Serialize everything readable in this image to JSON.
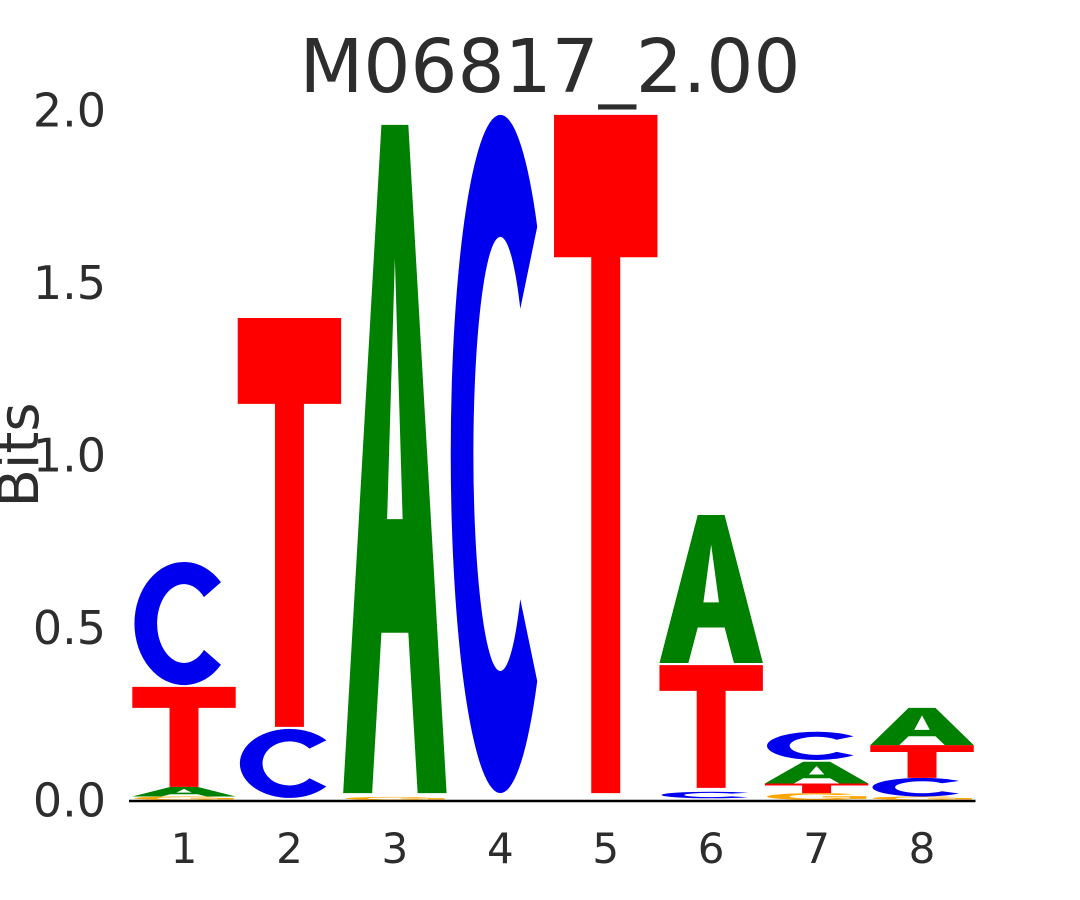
{
  "figure": {
    "background": "#ffffff",
    "text_color": "#2d2d2d"
  },
  "chart_data": {
    "type": "bar",
    "variant": "sequence_logo",
    "title": "M06817_2.00",
    "xlabel": "",
    "ylabel": "Bits",
    "ylim": [
      0,
      2.0
    ],
    "yticks": [
      0.0,
      0.5,
      1.0,
      1.5,
      2.0
    ],
    "y_tick_labels": [
      "0.0",
      "0.5",
      "1.0",
      "1.5",
      "2.0"
    ],
    "positions": [
      1,
      2,
      3,
      4,
      5,
      6,
      7,
      8
    ],
    "x_tick_labels": [
      "1",
      "2",
      "3",
      "4",
      "5",
      "6",
      "7",
      "8"
    ],
    "grid": false,
    "legend": "none",
    "letter_colors": {
      "A": "#008000",
      "C": "#0000EE",
      "G": "#FFA500",
      "T": "#FF0000"
    },
    "stacks": [
      [
        {
          "letter": "G",
          "from": 0.0,
          "to": 0.01
        },
        {
          "letter": "A",
          "from": 0.01,
          "to": 0.038
        },
        {
          "letter": "T",
          "from": 0.038,
          "to": 0.328
        },
        {
          "letter": "C",
          "from": 0.333,
          "to": 0.69
        }
      ],
      [
        {
          "letter": "C",
          "from": 0.006,
          "to": 0.206
        },
        {
          "letter": "T",
          "from": 0.212,
          "to": 1.397
        }
      ],
      [
        {
          "letter": "G",
          "from": 0.0,
          "to": 0.009
        },
        {
          "letter": "A",
          "from": 0.02,
          "to": 1.957
        }
      ],
      [
        {
          "letter": "C",
          "from": 0.02,
          "to": 1.986
        }
      ],
      [
        {
          "letter": "T",
          "from": 0.02,
          "to": 1.986
        }
      ],
      [
        {
          "letter": "C",
          "from": 0.005,
          "to": 0.024
        },
        {
          "letter": "T",
          "from": 0.035,
          "to": 0.391
        },
        {
          "letter": "A",
          "from": 0.397,
          "to": 0.826
        }
      ],
      [
        {
          "letter": "G",
          "from": 0.0,
          "to": 0.02
        },
        {
          "letter": "T",
          "from": 0.02,
          "to": 0.048
        },
        {
          "letter": "A",
          "from": 0.048,
          "to": 0.111
        },
        {
          "letter": "C",
          "from": 0.116,
          "to": 0.198
        }
      ],
      [
        {
          "letter": "G",
          "from": 0.0,
          "to": 0.01
        },
        {
          "letter": "C",
          "from": 0.01,
          "to": 0.064
        },
        {
          "letter": "T",
          "from": 0.064,
          "to": 0.159
        },
        {
          "letter": "A",
          "from": 0.159,
          "to": 0.267
        }
      ]
    ]
  }
}
